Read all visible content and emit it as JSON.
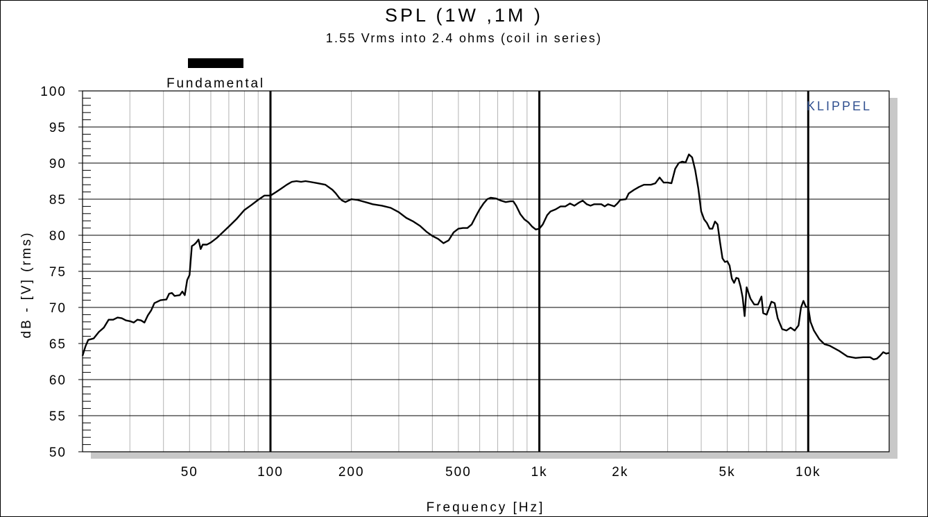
{
  "chart_data": {
    "type": "line",
    "title": "SPL (1W ,1M )",
    "subtitle": "1.55 Vrms into 2.4 ohms (coil in series)",
    "xlabel": "Frequency [Hz]",
    "ylabel": "dB - [V] (rms)",
    "x_scale": "log",
    "xlim": [
      20,
      20000
    ],
    "ylim": [
      50,
      100
    ],
    "x_ticks": [
      {
        "value": 50,
        "label": "50"
      },
      {
        "value": 100,
        "label": "100"
      },
      {
        "value": 200,
        "label": "200"
      },
      {
        "value": 500,
        "label": "500"
      },
      {
        "value": 1000,
        "label": "1k"
      },
      {
        "value": 2000,
        "label": "2k"
      },
      {
        "value": 5000,
        "label": "5k"
      },
      {
        "value": 10000,
        "label": "10k"
      }
    ],
    "y_ticks": [
      {
        "value": 100,
        "label": "100"
      },
      {
        "value": 95,
        "label": "95"
      },
      {
        "value": 90,
        "label": "90"
      },
      {
        "value": 85,
        "label": "85"
      },
      {
        "value": 80,
        "label": "80"
      },
      {
        "value": 75,
        "label": "75"
      },
      {
        "value": 70,
        "label": "70"
      },
      {
        "value": 65,
        "label": "65"
      },
      {
        "value": 60,
        "label": "60"
      },
      {
        "value": 55,
        "label": "55"
      },
      {
        "value": 50,
        "label": "50"
      }
    ],
    "grid": true,
    "legend_position": "top-left",
    "series": [
      {
        "name": "Fundamental",
        "color": "#000000",
        "points": [
          [
            20,
            63.3
          ],
          [
            20.5,
            64.6
          ],
          [
            21,
            65.5
          ],
          [
            22,
            65.7
          ],
          [
            23,
            66.6
          ],
          [
            24,
            67.2
          ],
          [
            25,
            68.3
          ],
          [
            26,
            68.3
          ],
          [
            27,
            68.6
          ],
          [
            28,
            68.5
          ],
          [
            29,
            68.2
          ],
          [
            30,
            68.1
          ],
          [
            31,
            67.9
          ],
          [
            32,
            68.3
          ],
          [
            33,
            68.2
          ],
          [
            34,
            67.9
          ],
          [
            35,
            68.9
          ],
          [
            36,
            69.6
          ],
          [
            37,
            70.6
          ],
          [
            39,
            71.0
          ],
          [
            41,
            71.1
          ],
          [
            42,
            71.9
          ],
          [
            43,
            72.0
          ],
          [
            44,
            71.6
          ],
          [
            46,
            71.7
          ],
          [
            47,
            72.2
          ],
          [
            48,
            71.7
          ],
          [
            49,
            73.8
          ],
          [
            50,
            74.5
          ],
          [
            51,
            78.5
          ],
          [
            52,
            78.7
          ],
          [
            53,
            79.0
          ],
          [
            54,
            79.4
          ],
          [
            55,
            78.1
          ],
          [
            56,
            78.7
          ],
          [
            58,
            78.7
          ],
          [
            60,
            79.0
          ],
          [
            63,
            79.6
          ],
          [
            66,
            80.3
          ],
          [
            70,
            81.2
          ],
          [
            75,
            82.3
          ],
          [
            80,
            83.5
          ],
          [
            85,
            84.2
          ],
          [
            90,
            84.9
          ],
          [
            95,
            85.5
          ],
          [
            100,
            85.5
          ],
          [
            105,
            86.0
          ],
          [
            110,
            86.5
          ],
          [
            115,
            87.0
          ],
          [
            120,
            87.4
          ],
          [
            125,
            87.5
          ],
          [
            130,
            87.4
          ],
          [
            135,
            87.5
          ],
          [
            140,
            87.4
          ],
          [
            150,
            87.2
          ],
          [
            160,
            87.0
          ],
          [
            170,
            86.3
          ],
          [
            175,
            85.8
          ],
          [
            180,
            85.2
          ],
          [
            185,
            84.8
          ],
          [
            190,
            84.6
          ],
          [
            200,
            85.0
          ],
          [
            210,
            84.9
          ],
          [
            220,
            84.7
          ],
          [
            230,
            84.5
          ],
          [
            240,
            84.3
          ],
          [
            260,
            84.1
          ],
          [
            280,
            83.8
          ],
          [
            300,
            83.2
          ],
          [
            320,
            82.4
          ],
          [
            340,
            81.9
          ],
          [
            360,
            81.3
          ],
          [
            380,
            80.5
          ],
          [
            400,
            79.9
          ],
          [
            420,
            79.5
          ],
          [
            440,
            78.9
          ],
          [
            460,
            79.3
          ],
          [
            480,
            80.4
          ],
          [
            500,
            80.9
          ],
          [
            520,
            81.0
          ],
          [
            540,
            81.0
          ],
          [
            560,
            81.5
          ],
          [
            580,
            82.6
          ],
          [
            600,
            83.6
          ],
          [
            620,
            84.4
          ],
          [
            640,
            85.0
          ],
          [
            660,
            85.2
          ],
          [
            690,
            85.1
          ],
          [
            720,
            84.8
          ],
          [
            750,
            84.6
          ],
          [
            780,
            84.7
          ],
          [
            800,
            84.7
          ],
          [
            820,
            84.1
          ],
          [
            850,
            82.9
          ],
          [
            880,
            82.2
          ],
          [
            910,
            81.8
          ],
          [
            940,
            81.2
          ],
          [
            970,
            80.8
          ],
          [
            1000,
            80.9
          ],
          [
            1030,
            81.5
          ],
          [
            1070,
            82.8
          ],
          [
            1100,
            83.3
          ],
          [
            1150,
            83.6
          ],
          [
            1200,
            84.0
          ],
          [
            1250,
            84.0
          ],
          [
            1300,
            84.4
          ],
          [
            1350,
            84.1
          ],
          [
            1400,
            84.5
          ],
          [
            1450,
            84.8
          ],
          [
            1500,
            84.3
          ],
          [
            1550,
            84.1
          ],
          [
            1600,
            84.3
          ],
          [
            1700,
            84.3
          ],
          [
            1750,
            84.0
          ],
          [
            1800,
            84.3
          ],
          [
            1900,
            84.0
          ],
          [
            1950,
            84.4
          ],
          [
            2000,
            84.9
          ],
          [
            2100,
            85.0
          ],
          [
            2150,
            85.8
          ],
          [
            2250,
            86.3
          ],
          [
            2350,
            86.7
          ],
          [
            2450,
            87.0
          ],
          [
            2600,
            87.0
          ],
          [
            2700,
            87.2
          ],
          [
            2800,
            88.0
          ],
          [
            2900,
            87.3
          ],
          [
            3000,
            87.3
          ],
          [
            3100,
            87.2
          ],
          [
            3200,
            89.2
          ],
          [
            3300,
            90.0
          ],
          [
            3400,
            90.2
          ],
          [
            3500,
            90.1
          ],
          [
            3600,
            91.2
          ],
          [
            3700,
            90.8
          ],
          [
            3800,
            89.0
          ],
          [
            3900,
            86.5
          ],
          [
            4000,
            83.3
          ],
          [
            4100,
            82.2
          ],
          [
            4200,
            81.7
          ],
          [
            4300,
            80.9
          ],
          [
            4400,
            80.9
          ],
          [
            4500,
            81.9
          ],
          [
            4600,
            81.5
          ],
          [
            4700,
            79.0
          ],
          [
            4800,
            76.8
          ],
          [
            4900,
            76.3
          ],
          [
            5000,
            76.4
          ],
          [
            5100,
            75.8
          ],
          [
            5200,
            74.0
          ],
          [
            5300,
            73.4
          ],
          [
            5400,
            74.1
          ],
          [
            5500,
            74.0
          ],
          [
            5600,
            72.9
          ],
          [
            5700,
            71.4
          ],
          [
            5800,
            68.8
          ],
          [
            5900,
            72.8
          ],
          [
            6000,
            72.0
          ],
          [
            6100,
            71.2
          ],
          [
            6300,
            70.4
          ],
          [
            6500,
            70.4
          ],
          [
            6700,
            71.5
          ],
          [
            6800,
            69.2
          ],
          [
            7000,
            69.0
          ],
          [
            7300,
            70.8
          ],
          [
            7500,
            70.6
          ],
          [
            7700,
            68.5
          ],
          [
            8000,
            67.0
          ],
          [
            8300,
            66.8
          ],
          [
            8600,
            67.2
          ],
          [
            8900,
            66.8
          ],
          [
            9200,
            67.5
          ],
          [
            9400,
            70.0
          ],
          [
            9600,
            70.9
          ],
          [
            9800,
            70.1
          ],
          [
            10000,
            70.0
          ],
          [
            10200,
            68.0
          ],
          [
            10500,
            66.8
          ],
          [
            11000,
            65.6
          ],
          [
            11500,
            64.9
          ],
          [
            12000,
            64.7
          ],
          [
            13000,
            64.0
          ],
          [
            14000,
            63.2
          ],
          [
            15000,
            63.0
          ],
          [
            16000,
            63.1
          ],
          [
            17000,
            63.1
          ],
          [
            17500,
            62.8
          ],
          [
            18000,
            62.9
          ],
          [
            18500,
            63.3
          ],
          [
            19000,
            63.8
          ],
          [
            19500,
            63.6
          ],
          [
            20000,
            63.7
          ]
        ]
      }
    ]
  },
  "brand": "KLIPPEL",
  "colors": {
    "grid_minor": "#b3b3b3",
    "grid_major": "#000000",
    "shadow": "#c8c8c8",
    "brand": "#2f4f8f"
  }
}
